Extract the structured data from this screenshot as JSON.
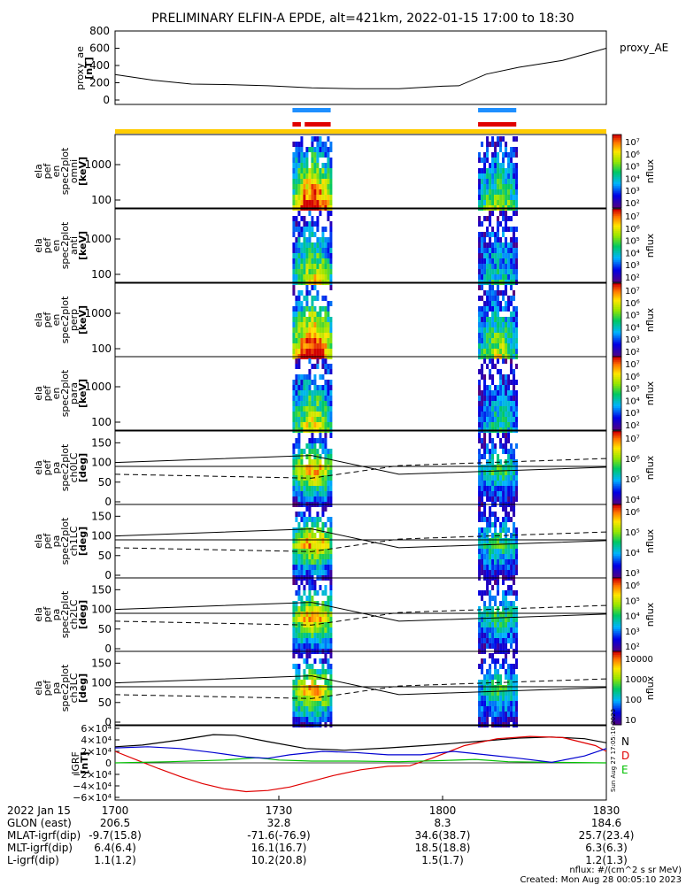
{
  "title": "PRELIMINARY ELFIN-A EPDE, alt=421km, 2022-01-15 17:00 to 18:30",
  "proxy_ae": {
    "ylabel_lines": [
      "proxy_ae",
      "[nT]"
    ],
    "legend": "proxy_AE",
    "yticks": [
      "800",
      "600",
      "400",
      "200",
      "0"
    ]
  },
  "spectro_panels": [
    {
      "label_lines": [
        "ela",
        "pef",
        "en",
        "spec2plot",
        "omni",
        "[keV]"
      ],
      "yticks": [
        "1000",
        "100"
      ]
    },
    {
      "label_lines": [
        "ela",
        "pef",
        "en",
        "spec2plot",
        "anti",
        "[keV]"
      ],
      "yticks": [
        "1000",
        "100"
      ]
    },
    {
      "label_lines": [
        "ela",
        "pef",
        "en",
        "spec2plot",
        "perp",
        "[keV]"
      ],
      "yticks": [
        "1000",
        "100"
      ]
    },
    {
      "label_lines": [
        "ela",
        "pef",
        "en",
        "spec2plot",
        "para",
        "[keV]"
      ],
      "yticks": [
        "1000",
        "100"
      ]
    }
  ],
  "pa_panels": [
    {
      "label_lines": [
        "ela",
        "pef",
        "pa",
        "spec2plot",
        "ch0LC",
        "[deg]"
      ],
      "yticks": [
        "150",
        "100",
        "50",
        "0"
      ]
    },
    {
      "label_lines": [
        "ela",
        "pef",
        "pa",
        "spec2plot",
        "ch1LC",
        "[deg]"
      ],
      "yticks": [
        "150",
        "100",
        "50",
        "0"
      ]
    },
    {
      "label_lines": [
        "ela",
        "pef",
        "pa",
        "spec2plot",
        "ch2LC",
        "[deg]"
      ],
      "yticks": [
        "150",
        "100",
        "50",
        "0"
      ]
    },
    {
      "label_lines": [
        "ela",
        "pef",
        "pa",
        "spec2plot",
        "ch3LC",
        "[deg]"
      ],
      "yticks": [
        "150",
        "100",
        "50",
        "0"
      ]
    }
  ],
  "colorbars": [
    {
      "ticks": [
        "10⁷",
        "10⁶",
        "10⁵",
        "10⁴",
        "10³",
        "10²"
      ],
      "label": "nflux"
    },
    {
      "ticks": [
        "10⁷",
        "10⁶",
        "10⁵",
        "10⁴",
        "10³",
        "10²"
      ],
      "label": "nflux"
    },
    {
      "ticks": [
        "10⁷",
        "10⁶",
        "10⁵",
        "10⁴",
        "10³",
        "10²"
      ],
      "label": "nflux"
    },
    {
      "ticks": [
        "10⁷",
        "10⁶",
        "10⁵",
        "10⁴",
        "10³",
        "10²"
      ],
      "label": "nflux"
    },
    {
      "ticks": [
        "10⁷",
        "10⁶",
        "10⁵",
        "10⁴"
      ],
      "label": "nflux"
    },
    {
      "ticks": [
        "10⁶",
        "10⁵",
        "10⁴",
        "10³"
      ],
      "label": "nflux"
    },
    {
      "ticks": [
        "10⁶",
        "10⁵",
        "10⁴",
        "10³",
        "10²"
      ],
      "label": "nflux"
    },
    {
      "ticks": [
        "10000",
        "1000",
        "100",
        "10"
      ],
      "label": "nflux"
    }
  ],
  "igrf": {
    "ylabel_lines": [
      "IGRF",
      "[nT]"
    ],
    "yticks": [
      "6×10⁴",
      "4×10⁴",
      "2×10⁴",
      "0",
      "−2×10⁴",
      "−4×10⁴",
      "−6×10⁴"
    ],
    "legend": [
      {
        "name": "N",
        "color": "#000000"
      },
      {
        "name": "D",
        "color": "#e00000"
      },
      {
        "name": "E",
        "color": "#00c000"
      }
    ],
    "stamp": "Sun Aug 27 17:05:10 2023"
  },
  "chart_data": {
    "type": "line",
    "x_ticks": [
      "1700",
      "1730",
      "1800",
      "1830"
    ],
    "xlim": [
      "17:00",
      "18:30"
    ],
    "proxy_ae": {
      "ylim": [
        0,
        800
      ],
      "x_min": [
        0,
        7,
        14,
        20,
        28,
        36,
        44,
        52,
        60,
        63,
        68,
        74,
        82,
        90
      ],
      "y": [
        295,
        230,
        185,
        180,
        165,
        140,
        130,
        130,
        160,
        165,
        300,
        380,
        460,
        600
      ]
    },
    "passes": [
      {
        "start_min": 32.5,
        "end_min": 39.5
      },
      {
        "start_min": 66.5,
        "end_min": 73.5
      }
    ],
    "igrf_series": [
      {
        "name": "N",
        "color": "#000000",
        "x_min": [
          0,
          5,
          12,
          18,
          22,
          28,
          35,
          42,
          50,
          58,
          66,
          74,
          80,
          86,
          90
        ],
        "y": [
          28000,
          31000,
          40000,
          49000,
          48000,
          37000,
          25000,
          22000,
          26000,
          31000,
          37000,
          43000,
          45000,
          42000,
          35000
        ]
      },
      {
        "name": "D",
        "color": "#e00000",
        "x_min": [
          0,
          4,
          8,
          12,
          16,
          20,
          24,
          28,
          32,
          36,
          40,
          45,
          50,
          54,
          58,
          64,
          70,
          76,
          82,
          88,
          90
        ],
        "y": [
          20000,
          5000,
          -10000,
          -24000,
          -36000,
          -45000,
          -50000,
          -48000,
          -42000,
          -32000,
          -22000,
          -12000,
          -6000,
          -5000,
          8000,
          30000,
          42000,
          46000,
          44000,
          30000,
          20000
        ]
      },
      {
        "name": "E",
        "color": "#00c000",
        "x_min": [
          0,
          10,
          20,
          26,
          30,
          36,
          44,
          52,
          60,
          66,
          72,
          80,
          90
        ],
        "y": [
          0,
          2000,
          5000,
          9000,
          5000,
          3000,
          3000,
          2000,
          4000,
          6000,
          2000,
          1000,
          0
        ]
      },
      {
        "name": "",
        "color": "#0000d0",
        "x_min": [
          0,
          6,
          12,
          18,
          24,
          28,
          32,
          38,
          44,
          50,
          56,
          62,
          68,
          74,
          80,
          86,
          90
        ],
        "y": [
          26000,
          28000,
          25000,
          18000,
          10000,
          8000,
          14000,
          20000,
          18000,
          14000,
          14000,
          20000,
          14000,
          8000,
          1000,
          12000,
          25000
        ]
      }
    ],
    "pa_reference_lines": {
      "solid_upper": {
        "x_min": [
          0,
          36,
          52,
          90
        ],
        "y": [
          100,
          118,
          70,
          88
        ]
      },
      "solid_flat": {
        "x_min": [
          0,
          90
        ],
        "y": [
          90,
          90
        ]
      },
      "dashed": {
        "x_min": [
          0,
          36,
          52,
          90
        ],
        "y": [
          70,
          60,
          92,
          110
        ]
      }
    }
  },
  "footer": {
    "rows": [
      {
        "label": "2022 Jan 15",
        "values": [
          "1700",
          "1730",
          "1800",
          "1830"
        ]
      },
      {
        "label": "GLON (east)",
        "values": [
          "206.5",
          "32.8",
          "8.3",
          "184.6"
        ]
      },
      {
        "label": "MLAT-igrf(dip)",
        "values": [
          "-9.7(15.8)",
          "-71.6(-76.9)",
          "34.6(38.7)",
          "25.7(23.4)"
        ]
      },
      {
        "label": "MLT-igrf(dip)",
        "values": [
          "6.4(6.4)",
          "16.1(16.7)",
          "18.5(18.8)",
          "6.3(6.3)"
        ]
      },
      {
        "label": "L-igrf(dip)",
        "values": [
          "1.1(1.2)",
          "10.2(20.8)",
          "1.5(1.7)",
          "1.2(1.3)"
        ]
      }
    ],
    "units_note": "nflux: #/(cm^2 s sr MeV)",
    "created": "Created: Mon Aug 28 00:05:10 2023"
  }
}
